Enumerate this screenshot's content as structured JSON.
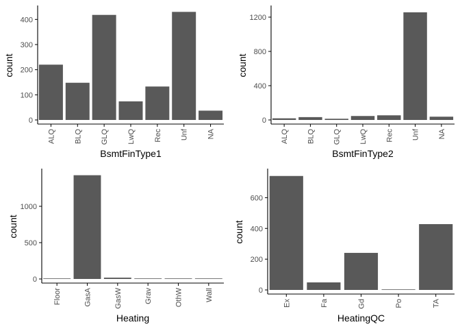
{
  "colors": {
    "bar": "#595959",
    "axis": "#000000",
    "tick_text": "#4d4d4d",
    "background": "#ffffff"
  },
  "chart_data": [
    {
      "type": "bar",
      "title": "",
      "xlabel": "BsmtFinType1",
      "ylabel": "count",
      "categories": [
        "ALQ",
        "BLQ",
        "GLQ",
        "LwQ",
        "Rec",
        "Unf",
        "NA"
      ],
      "values": [
        220,
        148,
        418,
        74,
        133,
        430,
        37
      ],
      "ylim": [
        0,
        450
      ],
      "yticks": [
        0,
        100,
        200,
        300,
        400
      ],
      "grid": false
    },
    {
      "type": "bar",
      "title": "",
      "xlabel": "BsmtFinType2",
      "ylabel": "count",
      "categories": [
        "ALQ",
        "BLQ",
        "GLQ",
        "LwQ",
        "Rec",
        "Unf",
        "NA"
      ],
      "values": [
        19,
        33,
        14,
        46,
        54,
        1256,
        38
      ],
      "ylim": [
        0,
        1320
      ],
      "yticks": [
        0,
        400,
        800,
        1200
      ],
      "grid": false
    },
    {
      "type": "bar",
      "title": "",
      "xlabel": "Heating",
      "ylabel": "count",
      "categories": [
        "Floor",
        "GasA",
        "GasW",
        "Grav",
        "OthW",
        "Wall"
      ],
      "values": [
        1,
        1428,
        18,
        7,
        2,
        4
      ],
      "ylim": [
        0,
        1500
      ],
      "yticks": [
        0,
        500,
        1000
      ],
      "grid": false
    },
    {
      "type": "bar",
      "title": "",
      "xlabel": "HeatingQC",
      "ylabel": "count",
      "categories": [
        "Ex",
        "Fa",
        "Gd",
        "Po",
        "TA"
      ],
      "values": [
        741,
        49,
        241,
        1,
        428
      ],
      "ylim": [
        0,
        780
      ],
      "yticks": [
        0,
        200,
        400,
        600
      ],
      "grid": false
    }
  ]
}
